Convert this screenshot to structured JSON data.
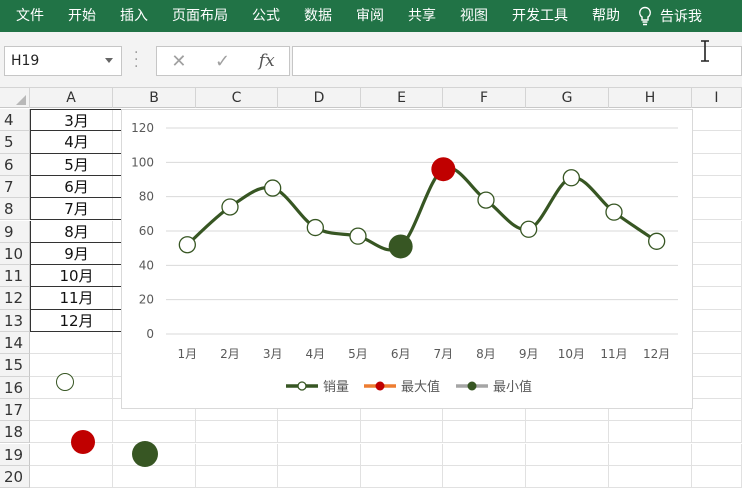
{
  "ribbon": {
    "tabs": [
      "文件",
      "开始",
      "插入",
      "页面布局",
      "公式",
      "数据",
      "审阅",
      "共享",
      "视图",
      "开发工具",
      "帮助"
    ],
    "tell_me": "告诉我",
    "color": "#217346"
  },
  "formula_bar": {
    "name_box": "H19",
    "cancel_icon": "✕",
    "enter_icon": "✓",
    "fx_label": "fx",
    "formula": ""
  },
  "grid": {
    "columns": [
      "A",
      "B",
      "C",
      "D",
      "E",
      "F",
      "G",
      "H",
      "I"
    ],
    "rows": [
      "4",
      "5",
      "6",
      "7",
      "8",
      "9",
      "10",
      "11",
      "12",
      "13",
      "14",
      "15",
      "16",
      "17",
      "18",
      "19",
      "20"
    ],
    "column_a_values": [
      "3月",
      "4月",
      "5月",
      "6月",
      "7月",
      "8月",
      "9月",
      "10月",
      "11月",
      "12月"
    ]
  },
  "chart_data": {
    "type": "line",
    "categories": [
      "1月",
      "2月",
      "3月",
      "4月",
      "5月",
      "6月",
      "7月",
      "8月",
      "9月",
      "10月",
      "11月",
      "12月"
    ],
    "series": [
      {
        "name": "销量",
        "values": [
          52,
          74,
          85,
          62,
          57,
          51,
          96,
          78,
          61,
          91,
          71,
          54
        ],
        "color": "#375623"
      },
      {
        "name": "最大值",
        "values": [
          null,
          null,
          null,
          null,
          null,
          null,
          96,
          null,
          null,
          null,
          null,
          null
        ],
        "color": "#c00000"
      },
      {
        "name": "最小值",
        "values": [
          null,
          null,
          null,
          null,
          null,
          51,
          null,
          null,
          null,
          null,
          null,
          null
        ],
        "color": "#375623"
      }
    ],
    "legend_swatch_colors": [
      "#375623",
      "#ed7d31",
      "#a5a5a5"
    ],
    "y_ticks": [
      0,
      20,
      40,
      60,
      80,
      100,
      120
    ],
    "ylim": [
      0,
      120
    ],
    "smooth": true,
    "grid": true,
    "legend": "bottom"
  },
  "floating_markers": [
    {
      "name": "open-circle",
      "fill": "#ffffff",
      "stroke": "#375623"
    },
    {
      "name": "red-dot",
      "fill": "#c00000",
      "stroke": "#c00000"
    },
    {
      "name": "green-dot",
      "fill": "#375623",
      "stroke": "#375623"
    }
  ]
}
